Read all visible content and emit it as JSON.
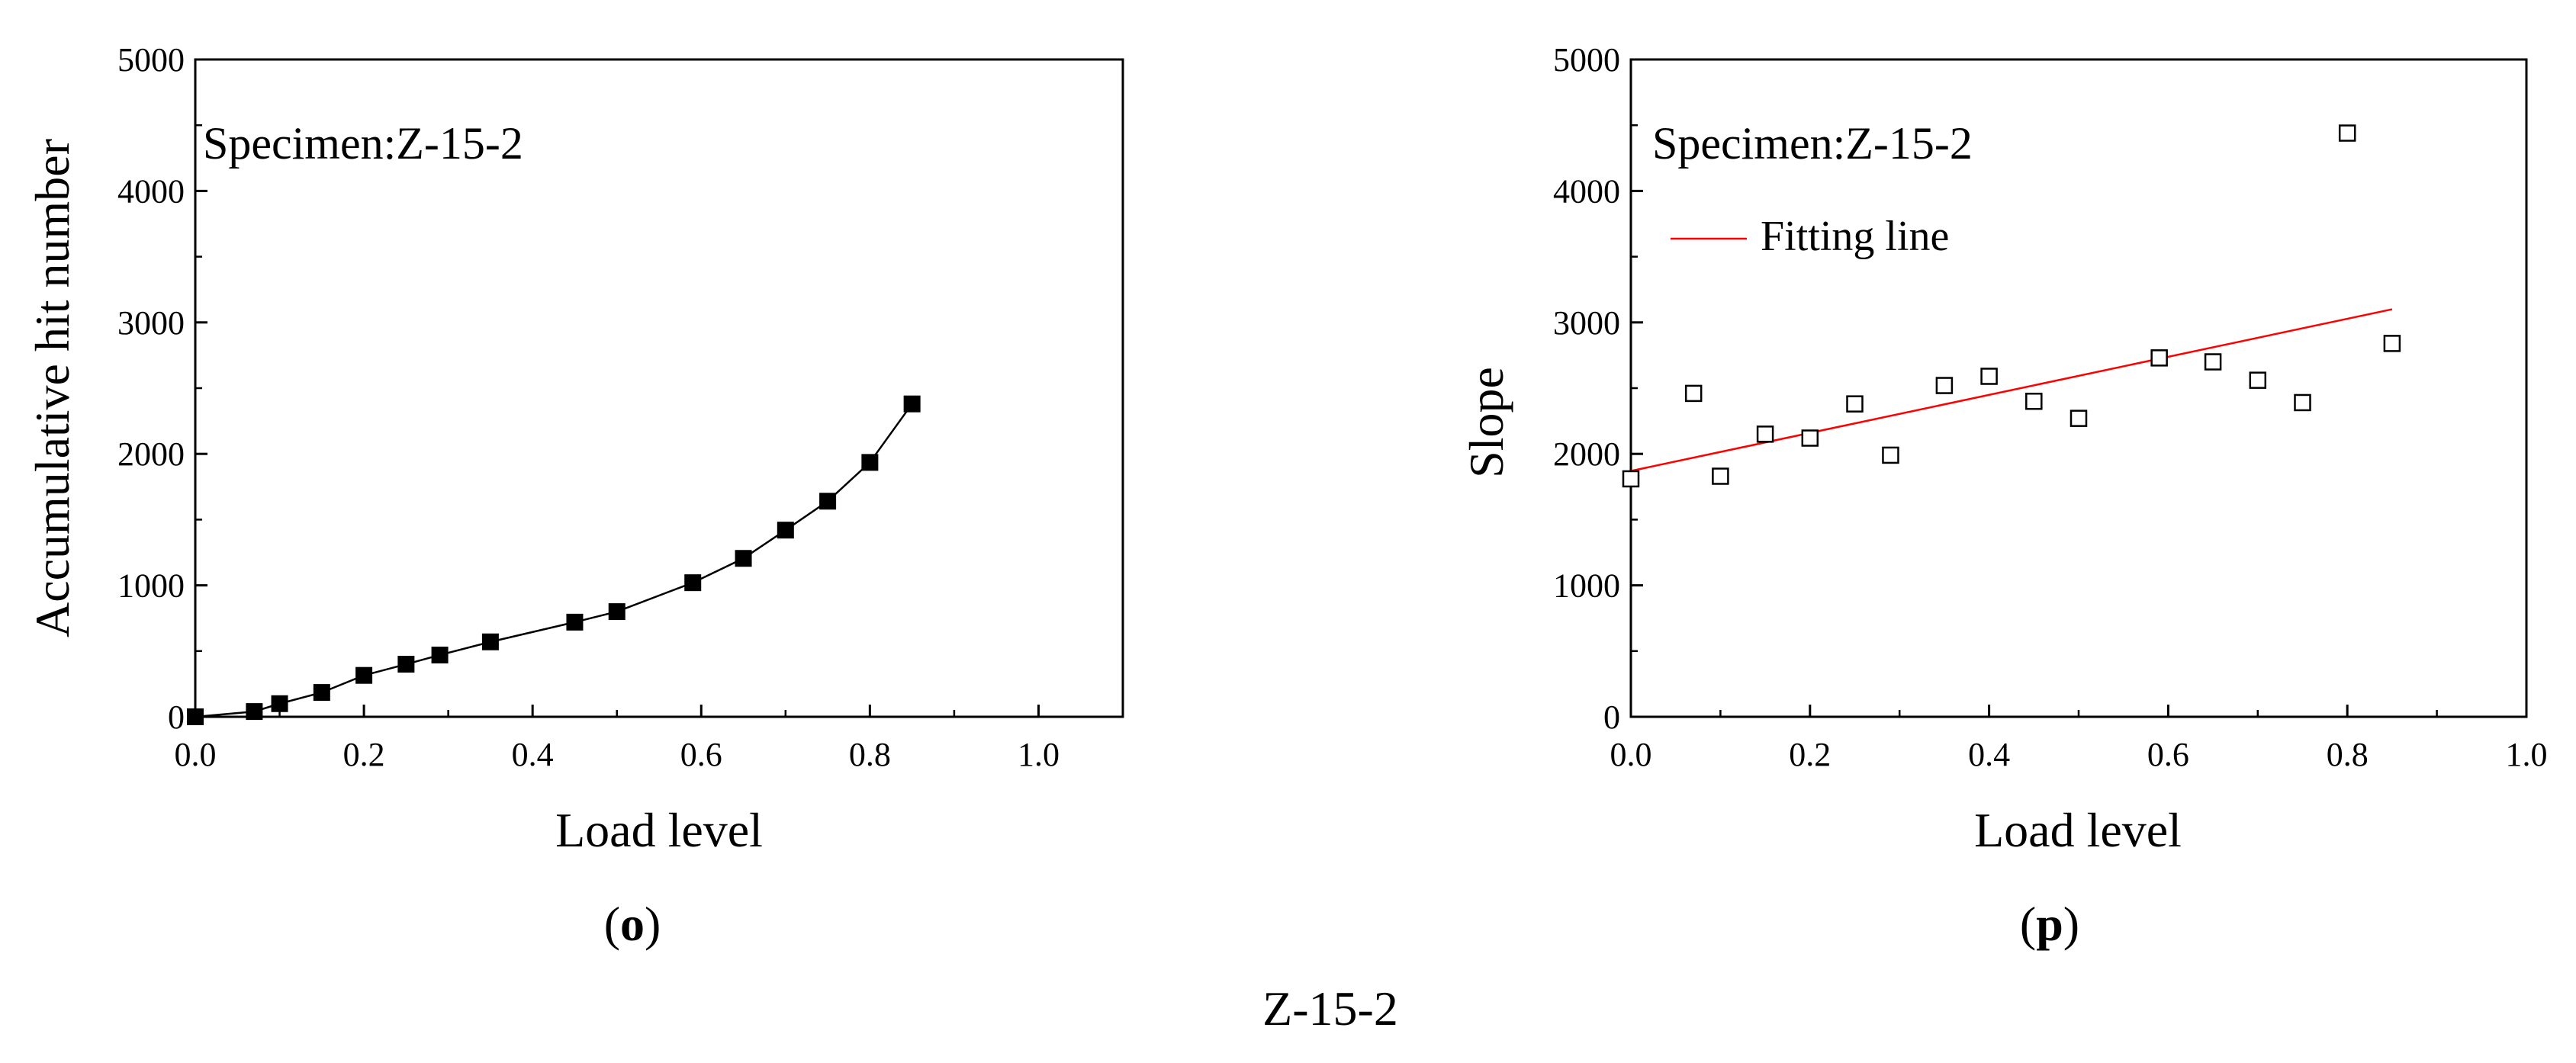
{
  "figure_caption": "Z-15-2",
  "colors": {
    "axis": "#000000",
    "marker": "#000000",
    "fit_line": "#ff0000",
    "background": "#ffffff"
  },
  "chart_data": [
    {
      "type": "line",
      "panel_label": "o",
      "annotation": "Specimen:Z-15-2",
      "xlabel": "Load level",
      "ylabel": "Accumulative hit number",
      "xlim": [
        0.0,
        1.1
      ],
      "ylim": [
        0,
        5000
      ],
      "x_ticks": [
        0.0,
        0.2,
        0.4,
        0.6,
        0.8,
        1.0
      ],
      "x_tick_labels": [
        "0.0",
        "0.2",
        "0.4",
        "0.6",
        "0.8",
        "1.0"
      ],
      "y_ticks": [
        0,
        1000,
        2000,
        3000,
        4000,
        5000
      ],
      "y_tick_labels": [
        "0",
        "1000",
        "2000",
        "3000",
        "4000",
        "5000"
      ],
      "grid": false,
      "marker": "filled-square",
      "series": [
        {
          "x": [
            0.0,
            0.07,
            0.1,
            0.15,
            0.2,
            0.25,
            0.29,
            0.35,
            0.45,
            0.5,
            0.59,
            0.65,
            0.7,
            0.75,
            0.8,
            0.85
          ],
          "y": [
            0,
            40,
            100,
            185,
            315,
            400,
            470,
            570,
            720,
            800,
            1020,
            1205,
            1420,
            1640,
            1935,
            2380
          ]
        }
      ]
    },
    {
      "type": "scatter",
      "panel_label": "p",
      "annotation": "Specimen:Z-15-2",
      "xlabel": "Load level",
      "ylabel": "Slope",
      "xlim": [
        0.0,
        1.0
      ],
      "ylim": [
        0,
        5000
      ],
      "x_ticks": [
        0.0,
        0.2,
        0.4,
        0.6,
        0.8,
        1.0
      ],
      "x_tick_labels": [
        "0.0",
        "0.2",
        "0.4",
        "0.6",
        "0.8",
        "1.0"
      ],
      "y_ticks": [
        0,
        1000,
        2000,
        3000,
        4000,
        5000
      ],
      "y_tick_labels": [
        "0",
        "1000",
        "2000",
        "3000",
        "4000",
        "5000"
      ],
      "grid": false,
      "legend_position": "top-left",
      "marker": "open-square",
      "series": [
        {
          "x": [
            0.0,
            0.07,
            0.1,
            0.15,
            0.2,
            0.25,
            0.29,
            0.35,
            0.4,
            0.45,
            0.5,
            0.59,
            0.65,
            0.7,
            0.75,
            0.8,
            0.85
          ],
          "y": [
            1810,
            2460,
            1830,
            2150,
            2120,
            2380,
            1990,
            2520,
            2590,
            2400,
            2270,
            2730,
            2700,
            2560,
            2390,
            4440,
            2840
          ]
        },
        {
          "name": "Fitting line",
          "type": "line",
          "x": [
            0.0,
            0.85
          ],
          "y": [
            1870,
            3100
          ]
        }
      ]
    }
  ]
}
